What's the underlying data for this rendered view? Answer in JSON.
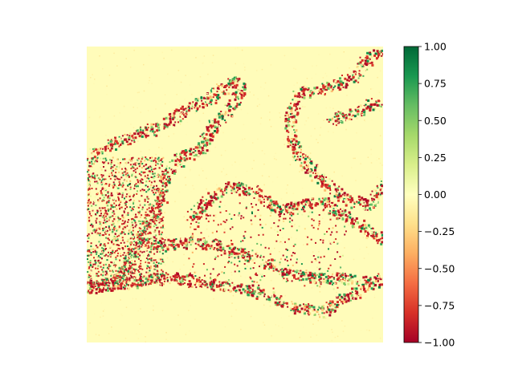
{
  "chart_data": {
    "type": "heatmap",
    "title": "",
    "xlabel": "",
    "ylabel": "",
    "axes_visible": false,
    "grid": false,
    "colormap": "RdYlGn",
    "colormap_stops": [
      "#a50026",
      "#d73027",
      "#f46d43",
      "#fdae61",
      "#fee08b",
      "#ffffbf",
      "#d9ef8b",
      "#a6d96a",
      "#66bd63",
      "#1a9850",
      "#006837"
    ],
    "vmin": -1.0,
    "vmax": 1.0,
    "background_value": -0.02,
    "colorbar": {
      "placement": "right",
      "ticks": [
        1.0,
        0.75,
        0.5,
        0.25,
        0.0,
        -0.25,
        -0.5,
        -0.75,
        -1.0
      ],
      "tick_labels": [
        "1.00",
        "0.75",
        "0.50",
        "0.25",
        "0.00",
        "−0.25",
        "−0.50",
        "−0.75",
        "−1.00"
      ]
    }
  }
}
